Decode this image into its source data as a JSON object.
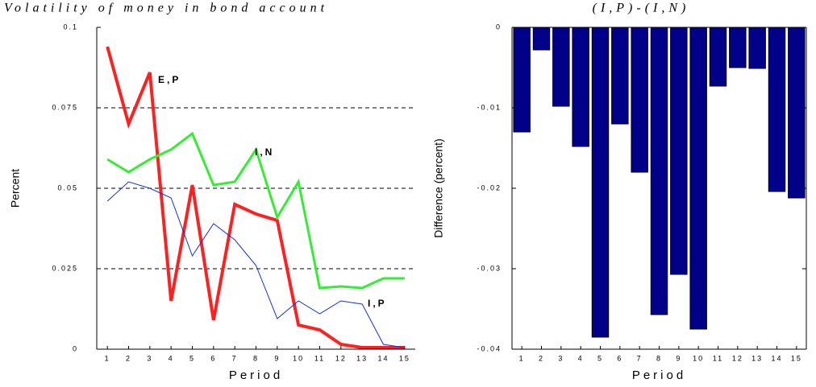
{
  "chart_data": [
    {
      "type": "line",
      "title": "Volatility of money in bond account",
      "x_label": "Period",
      "y_label": "Percent",
      "categories": [
        "1",
        "2",
        "3",
        "4",
        "5",
        "6",
        "7",
        "8",
        "9",
        "10",
        "11",
        "12",
        "13",
        "14",
        "15"
      ],
      "ylim": [
        0,
        0.1
      ],
      "yticks": [
        0,
        0.025,
        0.05,
        0.075,
        0.1
      ],
      "grid": true,
      "series": [
        {
          "name": "E,P",
          "color": "#ff2020",
          "values": [
            0.094,
            0.07,
            0.086,
            0.015,
            0.051,
            0.009,
            0.045,
            0.042,
            0.04,
            0.0075,
            0.006,
            0.0015,
            0.0005,
            0.0005,
            0.0005
          ]
        },
        {
          "name": "I,N",
          "color": "#33ee33",
          "values": [
            0.059,
            0.055,
            0.059,
            0.062,
            0.067,
            0.051,
            0.052,
            0.062,
            0.041,
            0.052,
            0.019,
            0.0195,
            0.019,
            0.022,
            0.022
          ]
        },
        {
          "name": "I,P",
          "color": "#1030ee",
          "values": [
            0.046,
            0.052,
            0.05,
            0.047,
            0.029,
            0.039,
            0.034,
            0.026,
            0.0095,
            0.015,
            0.011,
            0.015,
            0.014,
            0.0015,
            0.0005
          ]
        }
      ]
    },
    {
      "type": "bar",
      "title": "(I,P)-(I,N)",
      "x_label": "Period",
      "y_label": "Difference (percent)",
      "categories": [
        "1",
        "2",
        "3",
        "4",
        "5",
        "6",
        "7",
        "8",
        "9",
        "10",
        "11",
        "12",
        "13",
        "14",
        "15"
      ],
      "ylim": [
        -0.04,
        0
      ],
      "yticks": [
        0,
        -0.01,
        -0.02,
        -0.03,
        -0.04
      ],
      "color": "#000088",
      "values": [
        -0.013,
        -0.0028,
        -0.0098,
        -0.0148,
        -0.0385,
        -0.012,
        -0.018,
        -0.0357,
        -0.0307,
        -0.0375,
        -0.0073,
        -0.005,
        -0.0051,
        -0.0204,
        -0.0212
      ]
    }
  ]
}
